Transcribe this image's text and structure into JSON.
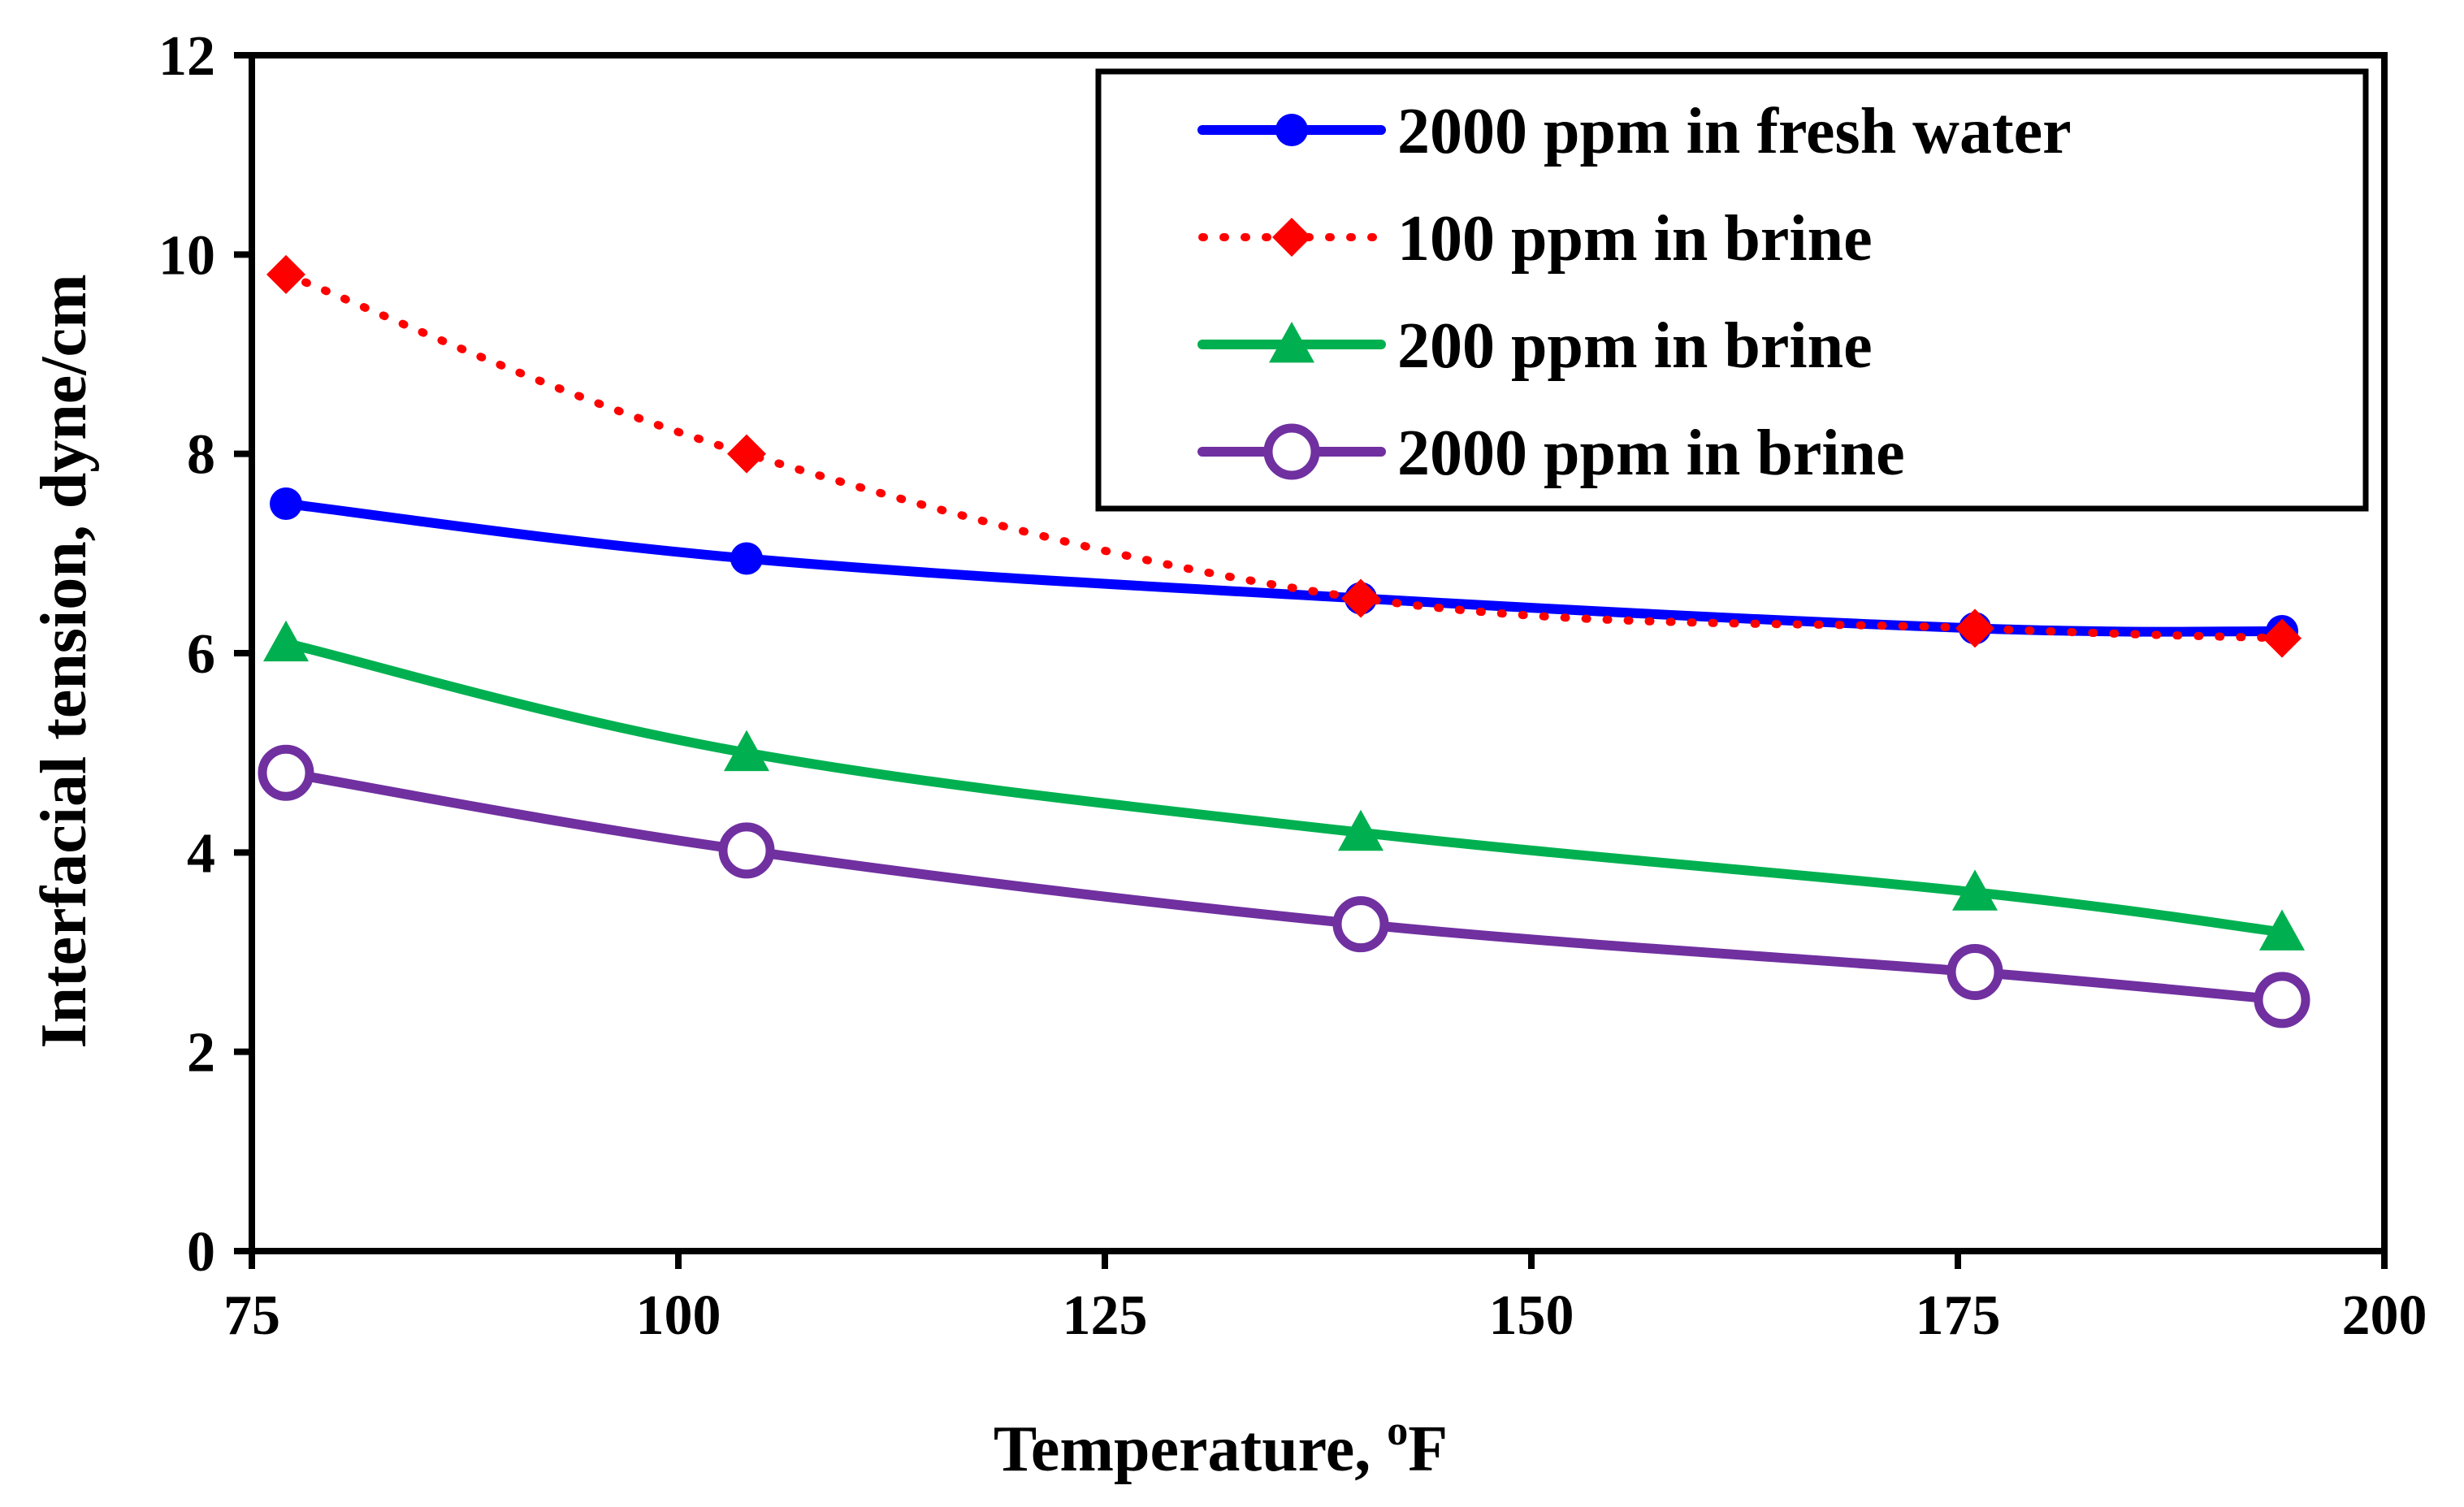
{
  "chart_data": {
    "type": "line",
    "title": "",
    "xlabel": "Temperature, ",
    "xlabel_unit_sup": "o",
    "xlabel_unit": "F",
    "ylabel": "Interfacial tension, dyne/cm",
    "xlim": [
      75,
      200
    ],
    "ylim": [
      0,
      12
    ],
    "xticks": [
      "75",
      "100",
      "125",
      "150",
      "175",
      "200"
    ],
    "yticks": [
      "0",
      "2",
      "4",
      "6",
      "8",
      "10",
      "12"
    ],
    "grid": false,
    "legend_position": "top-right",
    "series": [
      {
        "name": "2000 ppm in fresh water",
        "color": "#0000FF",
        "marker": "circle-filled",
        "linestyle": "solid",
        "x": [
          77,
          104,
          140,
          176,
          194
        ],
        "y": [
          7.5,
          6.95,
          6.55,
          6.25,
          6.22
        ]
      },
      {
        "name": "100 ppm in brine",
        "color": "#FF0000",
        "marker": "diamond",
        "linestyle": "dotted",
        "x": [
          77,
          104,
          140,
          176,
          194
        ],
        "y": [
          9.8,
          8.0,
          6.55,
          6.25,
          6.15
        ]
      },
      {
        "name": "200 ppm in brine",
        "color": "#00B050",
        "marker": "triangle",
        "linestyle": "solid",
        "x": [
          77,
          104,
          140,
          176,
          194
        ],
        "y": [
          6.1,
          5.0,
          4.2,
          3.6,
          3.2
        ]
      },
      {
        "name": "2000 ppm in brine",
        "color": "#7030A0",
        "marker": "circle-open",
        "linestyle": "solid",
        "x": [
          77,
          104,
          140,
          176,
          194
        ],
        "y": [
          4.8,
          4.02,
          3.28,
          2.8,
          2.52
        ]
      }
    ]
  }
}
